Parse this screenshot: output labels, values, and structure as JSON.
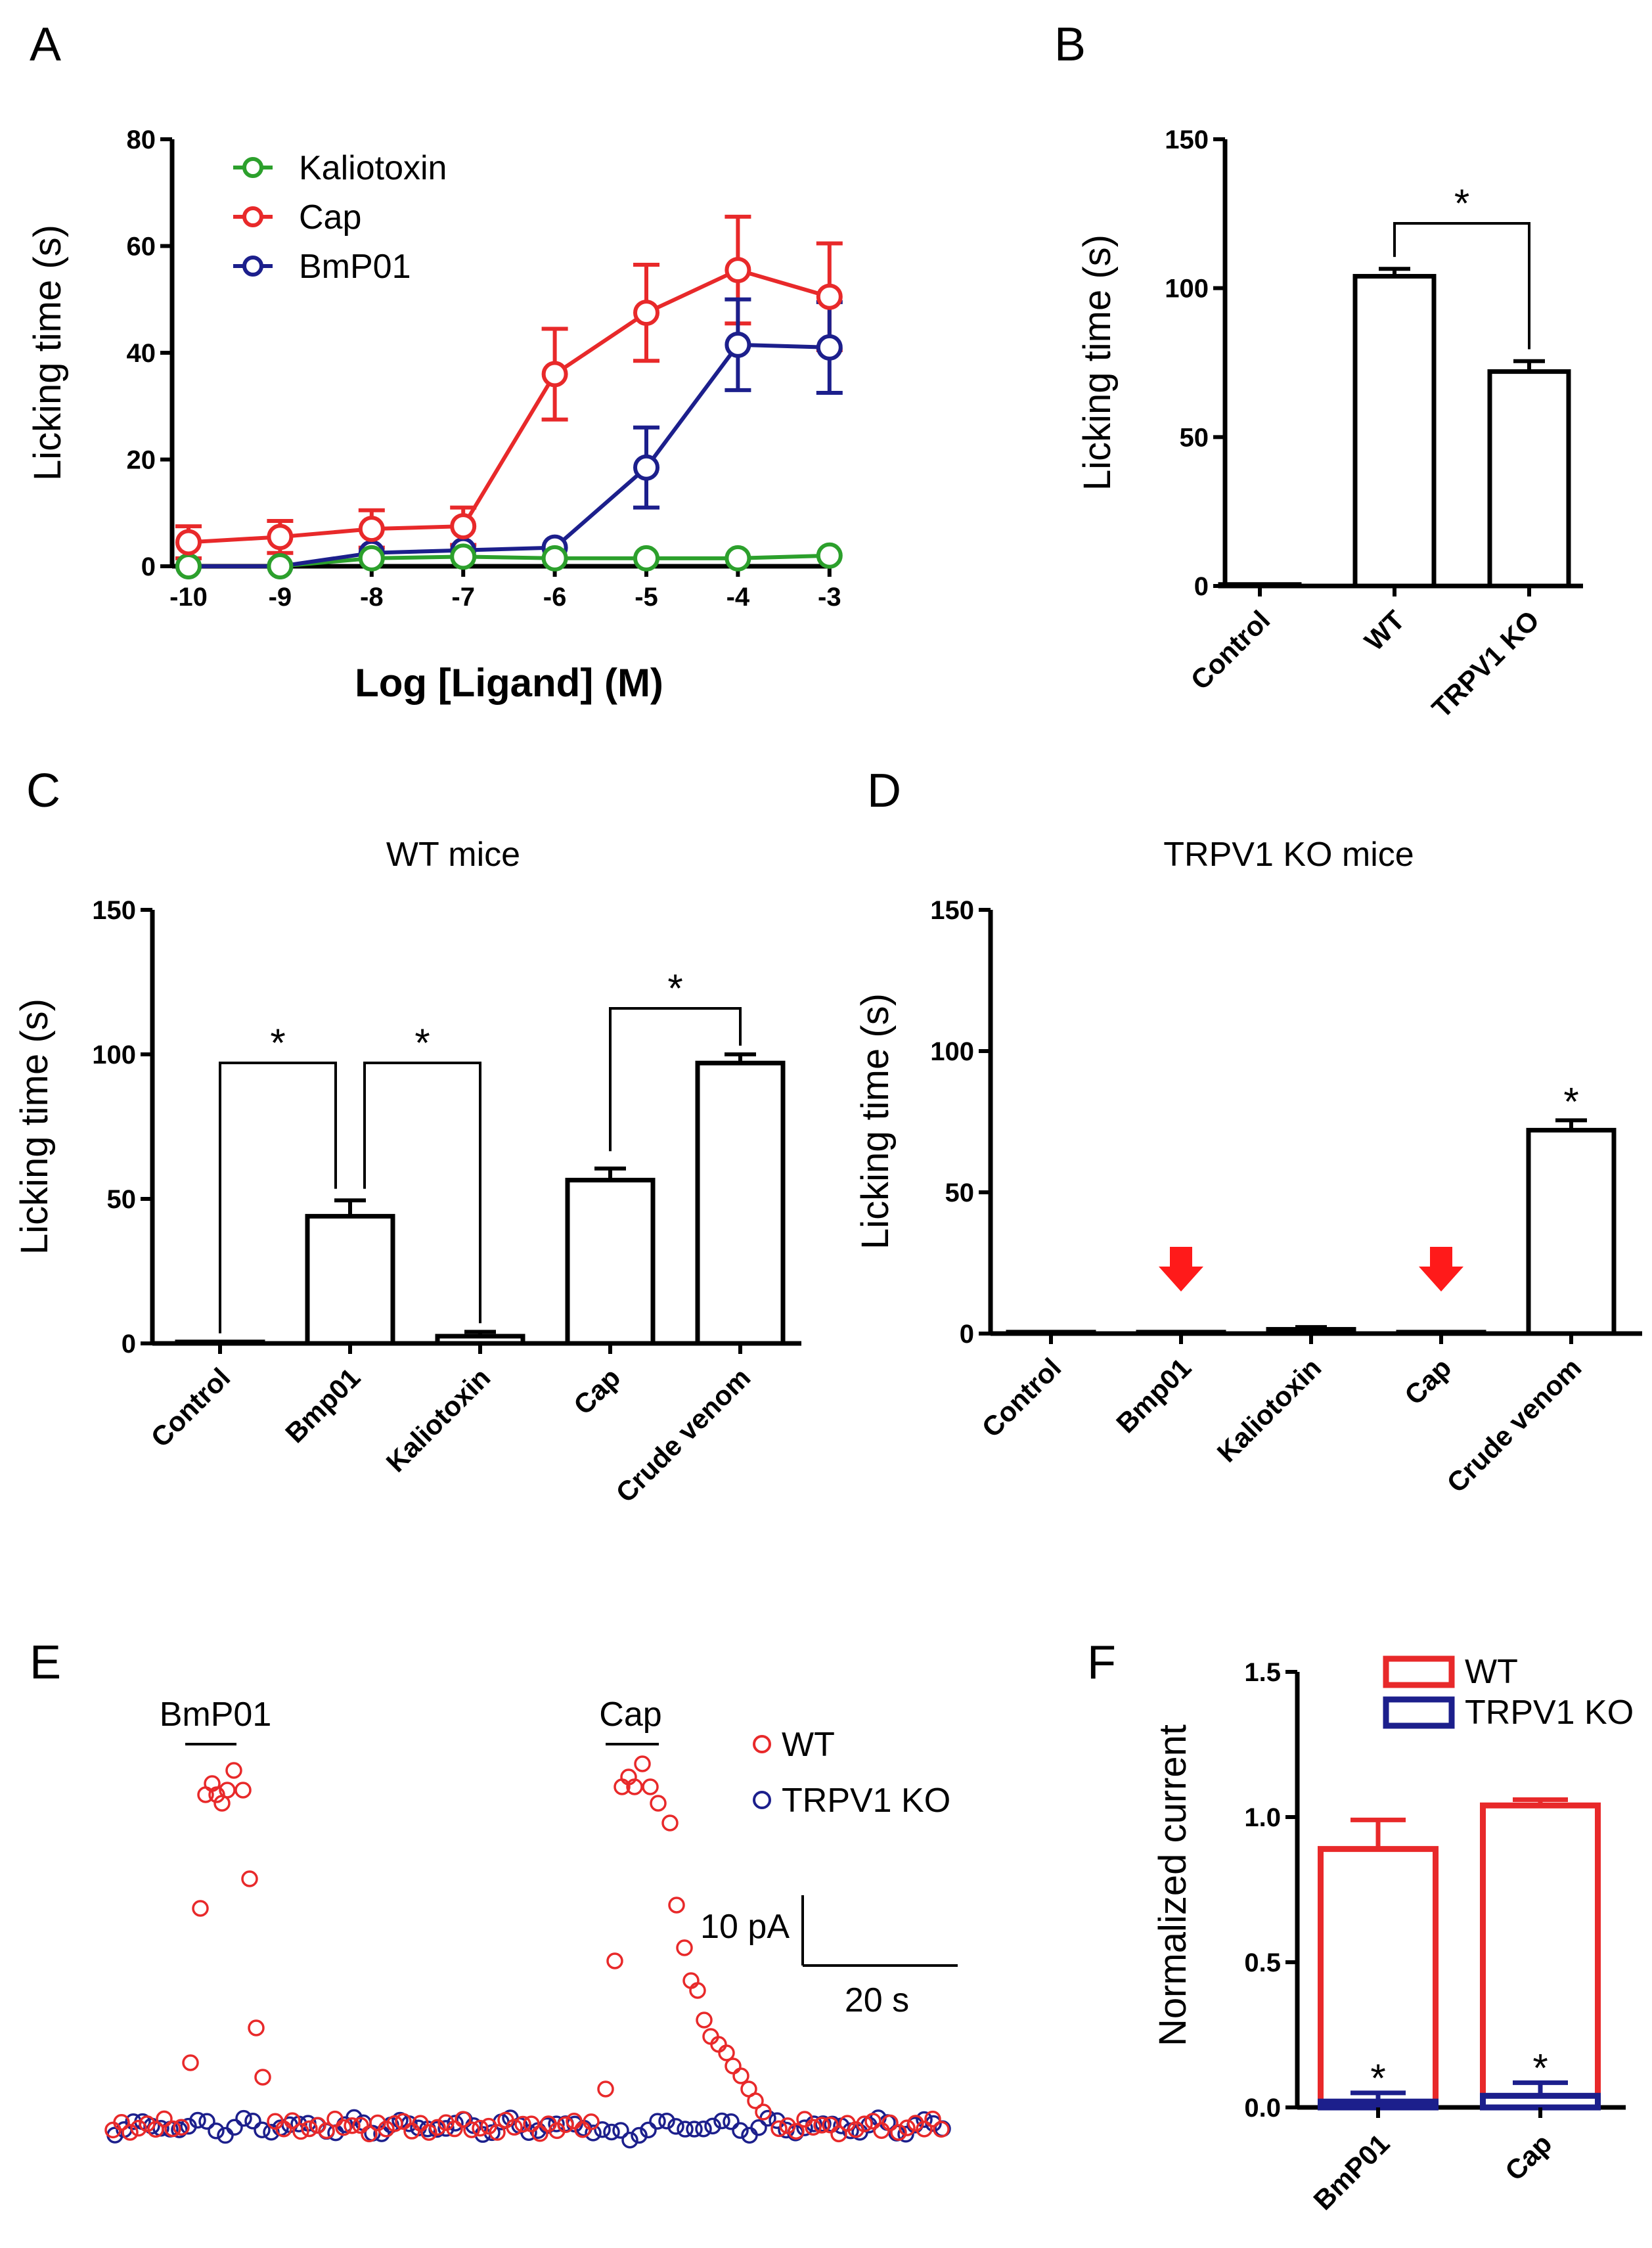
{
  "colors": {
    "kaliotoxin": "#2ca02c",
    "cap": "#e8292a",
    "bmp01": "#1c1f8c",
    "arrow": "#ff1a1a",
    "wt": "#e8292a",
    "ko": "#1c1f8c"
  },
  "chart_data": [
    {
      "panel": "A",
      "type": "line",
      "xlabel": "Log [Ligand] (M)",
      "ylabel": "Licking time (s)",
      "ylim": [
        0,
        80
      ],
      "yticks": [
        0,
        20,
        40,
        60,
        80
      ],
      "x": [
        -10,
        -9,
        -8,
        -7,
        -6,
        -5,
        -4,
        -3
      ],
      "series": [
        {
          "name": "Kaliotoxin",
          "values": [
            0,
            0,
            1.5,
            1.8,
            1.5,
            1.5,
            1.5,
            2
          ]
        },
        {
          "name": "Cap",
          "values": [
            4.5,
            5.5,
            7,
            7.5,
            36,
            47.5,
            55.5,
            50.5
          ],
          "err": [
            3,
            3,
            3.5,
            3.5,
            8.5,
            9,
            10,
            10
          ]
        },
        {
          "name": "BmP01",
          "values": [
            0,
            0,
            2.5,
            3,
            3.5,
            18.5,
            41.5,
            41
          ],
          "err": [
            0,
            0,
            0,
            0,
            0,
            7.5,
            8.5,
            8.5
          ]
        }
      ],
      "legend": "top-left"
    },
    {
      "panel": "B",
      "type": "bar",
      "ylabel": "Licking time (s)",
      "ylim": [
        0,
        150
      ],
      "yticks": [
        0,
        50,
        100,
        150
      ],
      "categories": [
        "Control",
        "WT",
        "TRPV1 KO"
      ],
      "values": [
        0.5,
        104,
        72
      ],
      "err": [
        0,
        2.5,
        3.5
      ],
      "significance": [
        {
          "from": 1,
          "to": 2,
          "label": "*"
        }
      ]
    },
    {
      "panel": "C",
      "type": "bar",
      "title": "WT mice",
      "ylabel": "Licking time (s)",
      "ylim": [
        0,
        150
      ],
      "yticks": [
        0,
        50,
        100,
        150
      ],
      "categories": [
        "Control",
        "Bmp01",
        "Kaliotoxin",
        "Cap",
        "Crude venom"
      ],
      "values": [
        0.5,
        44,
        2.5,
        56.5,
        97
      ],
      "err": [
        0,
        5.5,
        1.5,
        4,
        3
      ],
      "significance": [
        {
          "from": 0,
          "to": 1,
          "label": "*"
        },
        {
          "from": 1,
          "to": 2,
          "label": "*"
        },
        {
          "from": 3,
          "to": 4,
          "label": "*"
        }
      ]
    },
    {
      "panel": "D",
      "type": "bar",
      "title": "TRPV1 KO mice",
      "ylabel": "Licking time (s)",
      "ylim": [
        0,
        150
      ],
      "yticks": [
        0,
        50,
        100,
        150
      ],
      "categories": [
        "Control",
        "Bmp01",
        "Kaliotoxin",
        "Cap",
        "Crude venom"
      ],
      "values": [
        0.5,
        0.5,
        1.5,
        0.5,
        72
      ],
      "err": [
        0,
        0,
        0.8,
        0,
        3.5
      ],
      "markers": [
        {
          "index": 1,
          "type": "red-arrow"
        },
        {
          "index": 3,
          "type": "red-arrow"
        }
      ],
      "star_over": 4
    },
    {
      "panel": "E",
      "type": "scatter",
      "series": [
        {
          "name": "WT"
        },
        {
          "name": "TRPV1 KO"
        }
      ],
      "annotations": [
        "BmP01",
        "Cap"
      ],
      "scalebar": {
        "y_label": "10 pA",
        "x_label": "20 s"
      }
    },
    {
      "panel": "F",
      "type": "bar",
      "ylabel": "Normalized current",
      "ylim": [
        0,
        1.5
      ],
      "yticks": [
        "0.0",
        "0.5",
        "1.0",
        "1.5"
      ],
      "categories": [
        "BmP01",
        "Cap"
      ],
      "series": [
        {
          "name": "WT",
          "values": [
            0.89,
            1.04
          ],
          "err": [
            0.1,
            0.02
          ]
        },
        {
          "name": "TRPV1 KO",
          "values": [
            0.02,
            0.04
          ],
          "err": [
            0.03,
            0.045
          ]
        }
      ],
      "stars": [
        "*",
        "*"
      ]
    }
  ],
  "labels": {
    "panels": [
      "A",
      "B",
      "C",
      "D",
      "E",
      "F"
    ],
    "star": "*"
  }
}
